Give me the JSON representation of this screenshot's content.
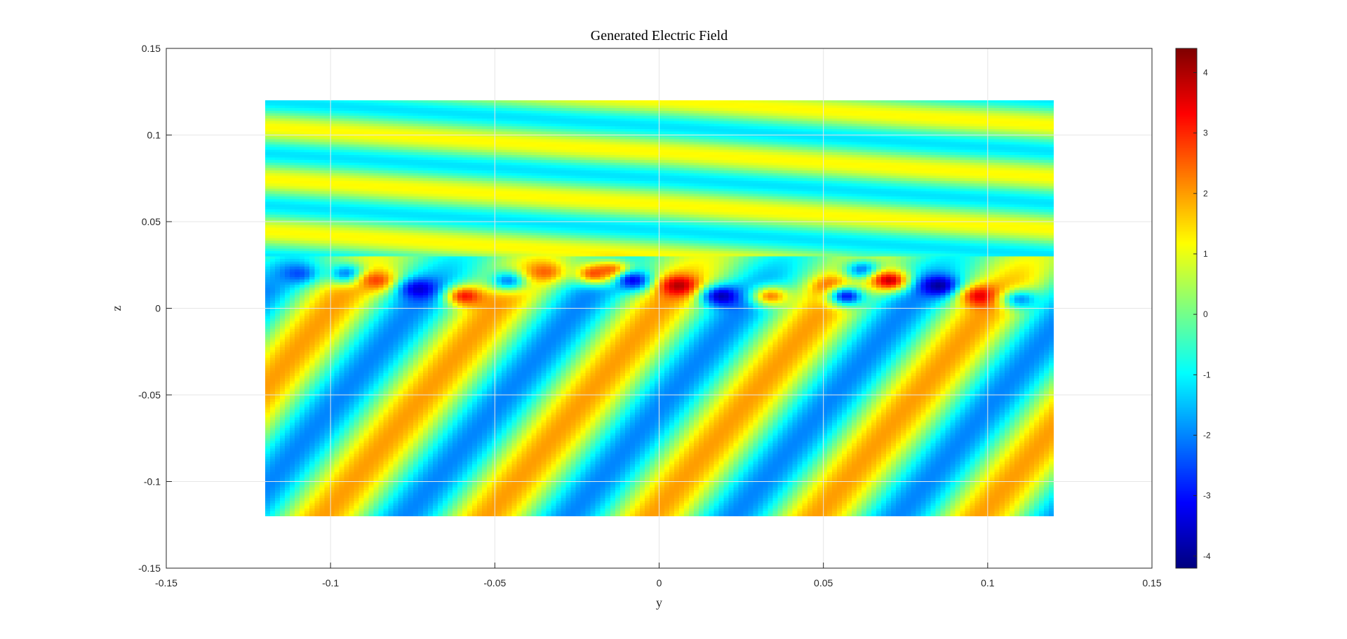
{
  "chart_data": {
    "type": "heatmap",
    "title": "Generated Electric Field",
    "xlabel": "y",
    "ylabel": "z",
    "xlim": [
      -0.15,
      0.15
    ],
    "ylim": [
      -0.15,
      0.15
    ],
    "xticks": [
      -0.15,
      -0.1,
      -0.05,
      0,
      0.05,
      0.1,
      0.15
    ],
    "xtick_labels": [
      "-0.15",
      "-0.1",
      "-0.05",
      "0",
      "0.05",
      "0.1",
      "0.15"
    ],
    "yticks": [
      0.15,
      0.1,
      0.05,
      0,
      -0.05,
      -0.1,
      -0.15
    ],
    "ytick_labels": [
      "0.15",
      "0.1",
      "0.05",
      "0",
      "-0.05",
      "-0.1",
      "-0.15"
    ],
    "grid": true,
    "colormap": "jet",
    "data_extent": {
      "y": [
        -0.12,
        0.12
      ],
      "z": [
        -0.12,
        0.12
      ]
    },
    "interface_z": 0.03,
    "upper_region": {
      "description": "plane wave stripes",
      "mean": 0.0,
      "amplitude": 1.2,
      "wavelength_z": 0.03,
      "tilt_dz_per_dy": -0.12
    },
    "lower_region": {
      "description": "oblique stripes",
      "mean": 0.0,
      "amplitude": 2.0,
      "stripe_period_y": 0.05,
      "slope_dz_per_dy": 2.3
    },
    "hotspots": [
      {
        "y": -0.11,
        "z": 0.02,
        "value": -2.5
      },
      {
        "y": -0.095,
        "z": 0.02,
        "value": -2.2
      },
      {
        "y": -0.086,
        "z": 0.016,
        "value": 2.8
      },
      {
        "y": -0.073,
        "z": 0.011,
        "value": -3.5
      },
      {
        "y": -0.059,
        "z": 0.007,
        "value": 3.2
      },
      {
        "y": -0.046,
        "z": 0.016,
        "value": -2.0
      },
      {
        "y": -0.035,
        "z": 0.021,
        "value": 2.5
      },
      {
        "y": -0.02,
        "z": 0.02,
        "value": 2.5
      },
      {
        "y": -0.014,
        "z": 0.021,
        "value": 3.2
      },
      {
        "y": -0.008,
        "z": 0.016,
        "value": -3.2
      },
      {
        "y": 0.006,
        "z": 0.013,
        "value": 4.0
      },
      {
        "y": 0.019,
        "z": 0.007,
        "value": -3.8
      },
      {
        "y": 0.034,
        "z": 0.007,
        "value": 2.2
      },
      {
        "y": 0.053,
        "z": 0.012,
        "value": 3.2
      },
      {
        "y": 0.057,
        "z": 0.007,
        "value": -3.0
      },
      {
        "y": 0.062,
        "z": 0.022,
        "value": -2.3
      },
      {
        "y": 0.07,
        "z": 0.016,
        "value": 3.8
      },
      {
        "y": 0.085,
        "z": 0.013,
        "value": -4.0
      },
      {
        "y": 0.098,
        "z": 0.007,
        "value": 3.6
      },
      {
        "y": 0.11,
        "z": 0.005,
        "value": -1.8
      }
    ],
    "colorbar": {
      "min": -4.2,
      "max": 4.4,
      "ticks": [
        4,
        3,
        2,
        1,
        0,
        -1,
        -2,
        -3,
        -4
      ],
      "tick_labels": [
        "4",
        "3",
        "2",
        "1",
        "0",
        "-1",
        "-2",
        "-3",
        "-4"
      ]
    }
  }
}
